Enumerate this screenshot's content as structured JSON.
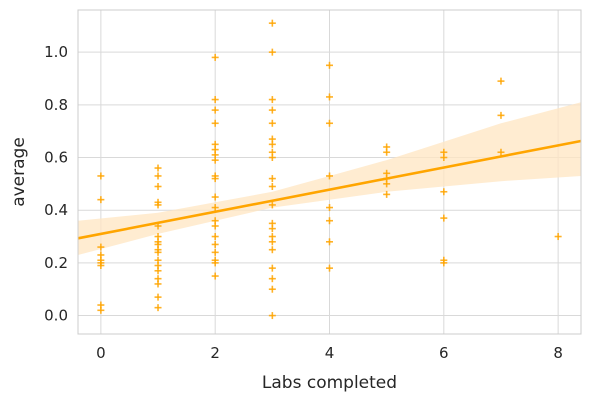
{
  "chart_data": {
    "type": "scatter",
    "title": "",
    "xlabel": "Labs completed",
    "ylabel": "average",
    "xlim": [
      -0.4,
      8.4
    ],
    "ylim": [
      -0.07,
      1.16
    ],
    "xticks": [
      0,
      2,
      4,
      6,
      8
    ],
    "yticks": [
      0.0,
      0.2,
      0.4,
      0.6,
      0.8,
      1.0
    ],
    "xtick_labels": [
      "0",
      "2",
      "4",
      "6",
      "8"
    ],
    "ytick_labels": [
      "0.0",
      "0.2",
      "0.4",
      "0.6",
      "0.8",
      "1.0"
    ],
    "grid": true,
    "marker": "+",
    "colors": {
      "points": "#ffa500",
      "fit_line": "#ffa500",
      "confidence_band": "#ffe6c2",
      "grid": "#d9d9d9",
      "frame": "#cccccc",
      "text": "#262626"
    },
    "points": [
      {
        "x": 0,
        "y": 0.53
      },
      {
        "x": 0,
        "y": 0.44
      },
      {
        "x": 0,
        "y": 0.26
      },
      {
        "x": 0,
        "y": 0.23
      },
      {
        "x": 0,
        "y": 0.21
      },
      {
        "x": 0,
        "y": 0.2
      },
      {
        "x": 0,
        "y": 0.19
      },
      {
        "x": 0,
        "y": 0.04
      },
      {
        "x": 0,
        "y": 0.02
      },
      {
        "x": 1,
        "y": 0.56
      },
      {
        "x": 1,
        "y": 0.53
      },
      {
        "x": 1,
        "y": 0.49
      },
      {
        "x": 1,
        "y": 0.43
      },
      {
        "x": 1,
        "y": 0.42
      },
      {
        "x": 1,
        "y": 0.34
      },
      {
        "x": 1,
        "y": 0.3
      },
      {
        "x": 1,
        "y": 0.28
      },
      {
        "x": 1,
        "y": 0.27
      },
      {
        "x": 1,
        "y": 0.25
      },
      {
        "x": 1,
        "y": 0.24
      },
      {
        "x": 1,
        "y": 0.21
      },
      {
        "x": 1,
        "y": 0.19
      },
      {
        "x": 1,
        "y": 0.17
      },
      {
        "x": 1,
        "y": 0.14
      },
      {
        "x": 1,
        "y": 0.12
      },
      {
        "x": 1,
        "y": 0.07
      },
      {
        "x": 1,
        "y": 0.03
      },
      {
        "x": 2,
        "y": 0.98
      },
      {
        "x": 2,
        "y": 0.82
      },
      {
        "x": 2,
        "y": 0.78
      },
      {
        "x": 2,
        "y": 0.73
      },
      {
        "x": 2,
        "y": 0.65
      },
      {
        "x": 2,
        "y": 0.63
      },
      {
        "x": 2,
        "y": 0.61
      },
      {
        "x": 2,
        "y": 0.59
      },
      {
        "x": 2,
        "y": 0.53
      },
      {
        "x": 2,
        "y": 0.52
      },
      {
        "x": 2,
        "y": 0.45
      },
      {
        "x": 2,
        "y": 0.41
      },
      {
        "x": 2,
        "y": 0.36
      },
      {
        "x": 2,
        "y": 0.34
      },
      {
        "x": 2,
        "y": 0.3
      },
      {
        "x": 2,
        "y": 0.27
      },
      {
        "x": 2,
        "y": 0.24
      },
      {
        "x": 2,
        "y": 0.21
      },
      {
        "x": 2,
        "y": 0.2
      },
      {
        "x": 2,
        "y": 0.15
      },
      {
        "x": 3,
        "y": 1.11
      },
      {
        "x": 3,
        "y": 1.0
      },
      {
        "x": 3,
        "y": 0.82
      },
      {
        "x": 3,
        "y": 0.78
      },
      {
        "x": 3,
        "y": 0.73
      },
      {
        "x": 3,
        "y": 0.67
      },
      {
        "x": 3,
        "y": 0.65
      },
      {
        "x": 3,
        "y": 0.62
      },
      {
        "x": 3,
        "y": 0.6
      },
      {
        "x": 3,
        "y": 0.52
      },
      {
        "x": 3,
        "y": 0.49
      },
      {
        "x": 3,
        "y": 0.42
      },
      {
        "x": 3,
        "y": 0.35
      },
      {
        "x": 3,
        "y": 0.33
      },
      {
        "x": 3,
        "y": 0.3
      },
      {
        "x": 3,
        "y": 0.28
      },
      {
        "x": 3,
        "y": 0.25
      },
      {
        "x": 3,
        "y": 0.18
      },
      {
        "x": 3,
        "y": 0.14
      },
      {
        "x": 3,
        "y": 0.1
      },
      {
        "x": 3,
        "y": 0.0
      },
      {
        "x": 4,
        "y": 0.95
      },
      {
        "x": 4,
        "y": 0.83
      },
      {
        "x": 4,
        "y": 0.73
      },
      {
        "x": 4,
        "y": 0.53
      },
      {
        "x": 4,
        "y": 0.41
      },
      {
        "x": 4,
        "y": 0.36
      },
      {
        "x": 4,
        "y": 0.28
      },
      {
        "x": 4,
        "y": 0.18
      },
      {
        "x": 5,
        "y": 0.64
      },
      {
        "x": 5,
        "y": 0.62
      },
      {
        "x": 5,
        "y": 0.54
      },
      {
        "x": 5,
        "y": 0.52
      },
      {
        "x": 5,
        "y": 0.5
      },
      {
        "x": 5,
        "y": 0.46
      },
      {
        "x": 6,
        "y": 0.62
      },
      {
        "x": 6,
        "y": 0.6
      },
      {
        "x": 6,
        "y": 0.47
      },
      {
        "x": 6,
        "y": 0.37
      },
      {
        "x": 6,
        "y": 0.21
      },
      {
        "x": 6,
        "y": 0.2
      },
      {
        "x": 7,
        "y": 0.89
      },
      {
        "x": 7,
        "y": 0.76
      },
      {
        "x": 7,
        "y": 0.62
      },
      {
        "x": 8,
        "y": 0.3
      }
    ],
    "regression": {
      "x_range": [
        -0.4,
        8.4
      ],
      "intercept": 0.31,
      "slope": 0.042,
      "band": [
        {
          "x": -0.4,
          "lower": 0.23,
          "upper": 0.36
        },
        {
          "x": 1.0,
          "lower": 0.31,
          "upper": 0.39
        },
        {
          "x": 2.0,
          "lower": 0.36,
          "upper": 0.43
        },
        {
          "x": 3.0,
          "lower": 0.41,
          "upper": 0.47
        },
        {
          "x": 4.0,
          "lower": 0.44,
          "upper": 0.53
        },
        {
          "x": 5.0,
          "lower": 0.47,
          "upper": 0.59
        },
        {
          "x": 6.0,
          "lower": 0.49,
          "upper": 0.66
        },
        {
          "x": 7.0,
          "lower": 0.51,
          "upper": 0.73
        },
        {
          "x": 8.4,
          "lower": 0.53,
          "upper": 0.81
        }
      ]
    }
  }
}
